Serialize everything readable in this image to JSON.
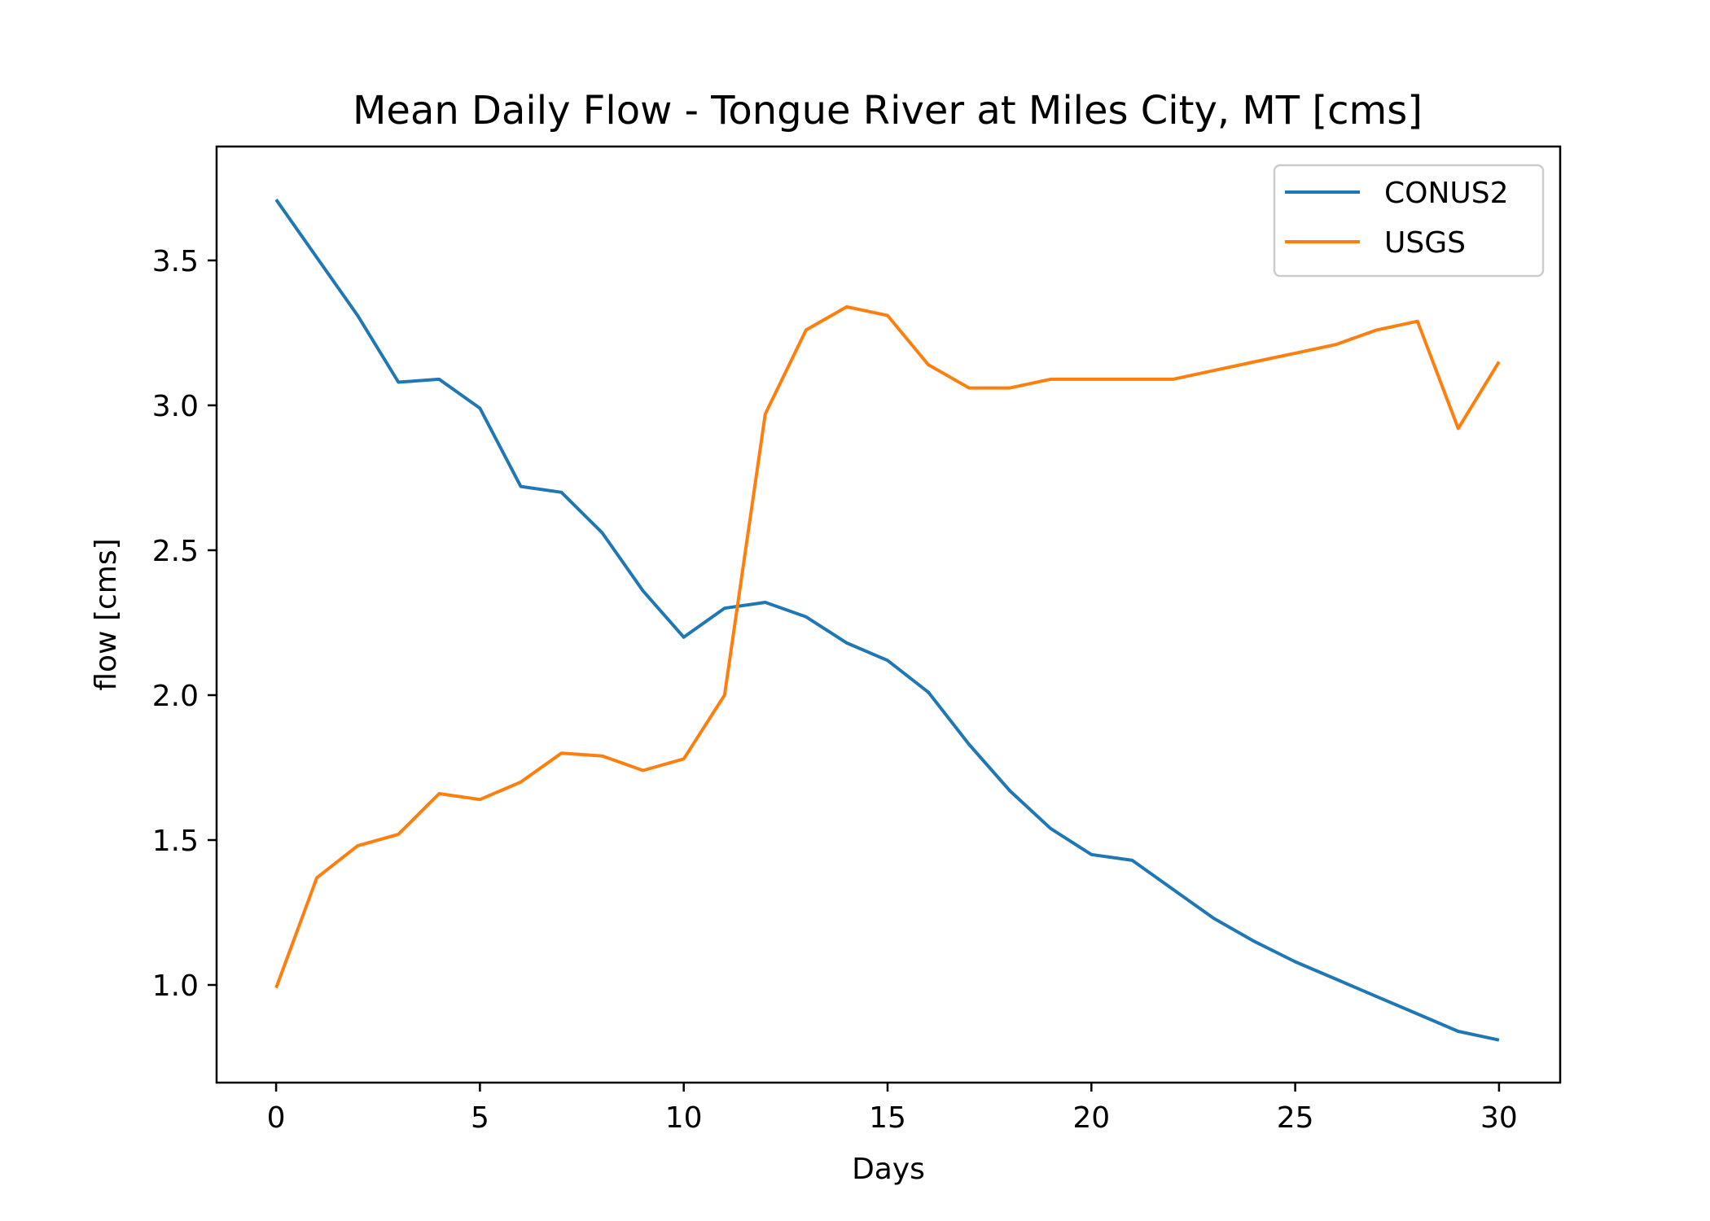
{
  "chart_data": {
    "type": "line",
    "title": "Mean Daily Flow - Tongue River at Miles City, MT [cms]",
    "xlabel": "Days",
    "ylabel": "flow [cms]",
    "xlim": [
      -1.46,
      31.5
    ],
    "ylim": [
      0.663,
      3.893
    ],
    "xticks": [
      0,
      5,
      10,
      15,
      20,
      25,
      30
    ],
    "yticks": [
      1.0,
      1.5,
      2.0,
      2.5,
      3.0,
      3.5
    ],
    "xtick_labels": [
      "0",
      "5",
      "10",
      "15",
      "20",
      "25",
      "30"
    ],
    "ytick_labels": [
      "1.0",
      "1.5",
      "2.0",
      "2.5",
      "3.0",
      "3.5"
    ],
    "grid": false,
    "legend_position": "top-right",
    "x": [
      0,
      1,
      2,
      3,
      4,
      5,
      6,
      7,
      8,
      9,
      10,
      11,
      12,
      13,
      14,
      15,
      16,
      17,
      18,
      19,
      20,
      21,
      22,
      23,
      24,
      25,
      26,
      27,
      28,
      29,
      30
    ],
    "series": [
      {
        "name": "CONUS2",
        "color": "#1f77b4",
        "values": [
          3.71,
          3.51,
          3.31,
          3.08,
          3.09,
          2.99,
          2.72,
          2.7,
          2.56,
          2.36,
          2.2,
          2.3,
          2.32,
          2.27,
          2.18,
          2.12,
          2.01,
          1.83,
          1.67,
          1.54,
          1.45,
          1.43,
          1.33,
          1.23,
          1.15,
          1.08,
          1.02,
          0.96,
          0.9,
          0.84,
          0.81
        ]
      },
      {
        "name": "USGS",
        "color": "#ff7f0e",
        "values": [
          0.99,
          1.37,
          1.48,
          1.52,
          1.66,
          1.64,
          1.7,
          1.8,
          1.79,
          1.74,
          1.78,
          2.0,
          2.97,
          3.26,
          3.34,
          3.31,
          3.14,
          3.06,
          3.06,
          3.09,
          3.09,
          3.09,
          3.09,
          3.12,
          3.15,
          3.18,
          3.21,
          3.26,
          3.29,
          2.92,
          3.15
        ]
      }
    ]
  }
}
